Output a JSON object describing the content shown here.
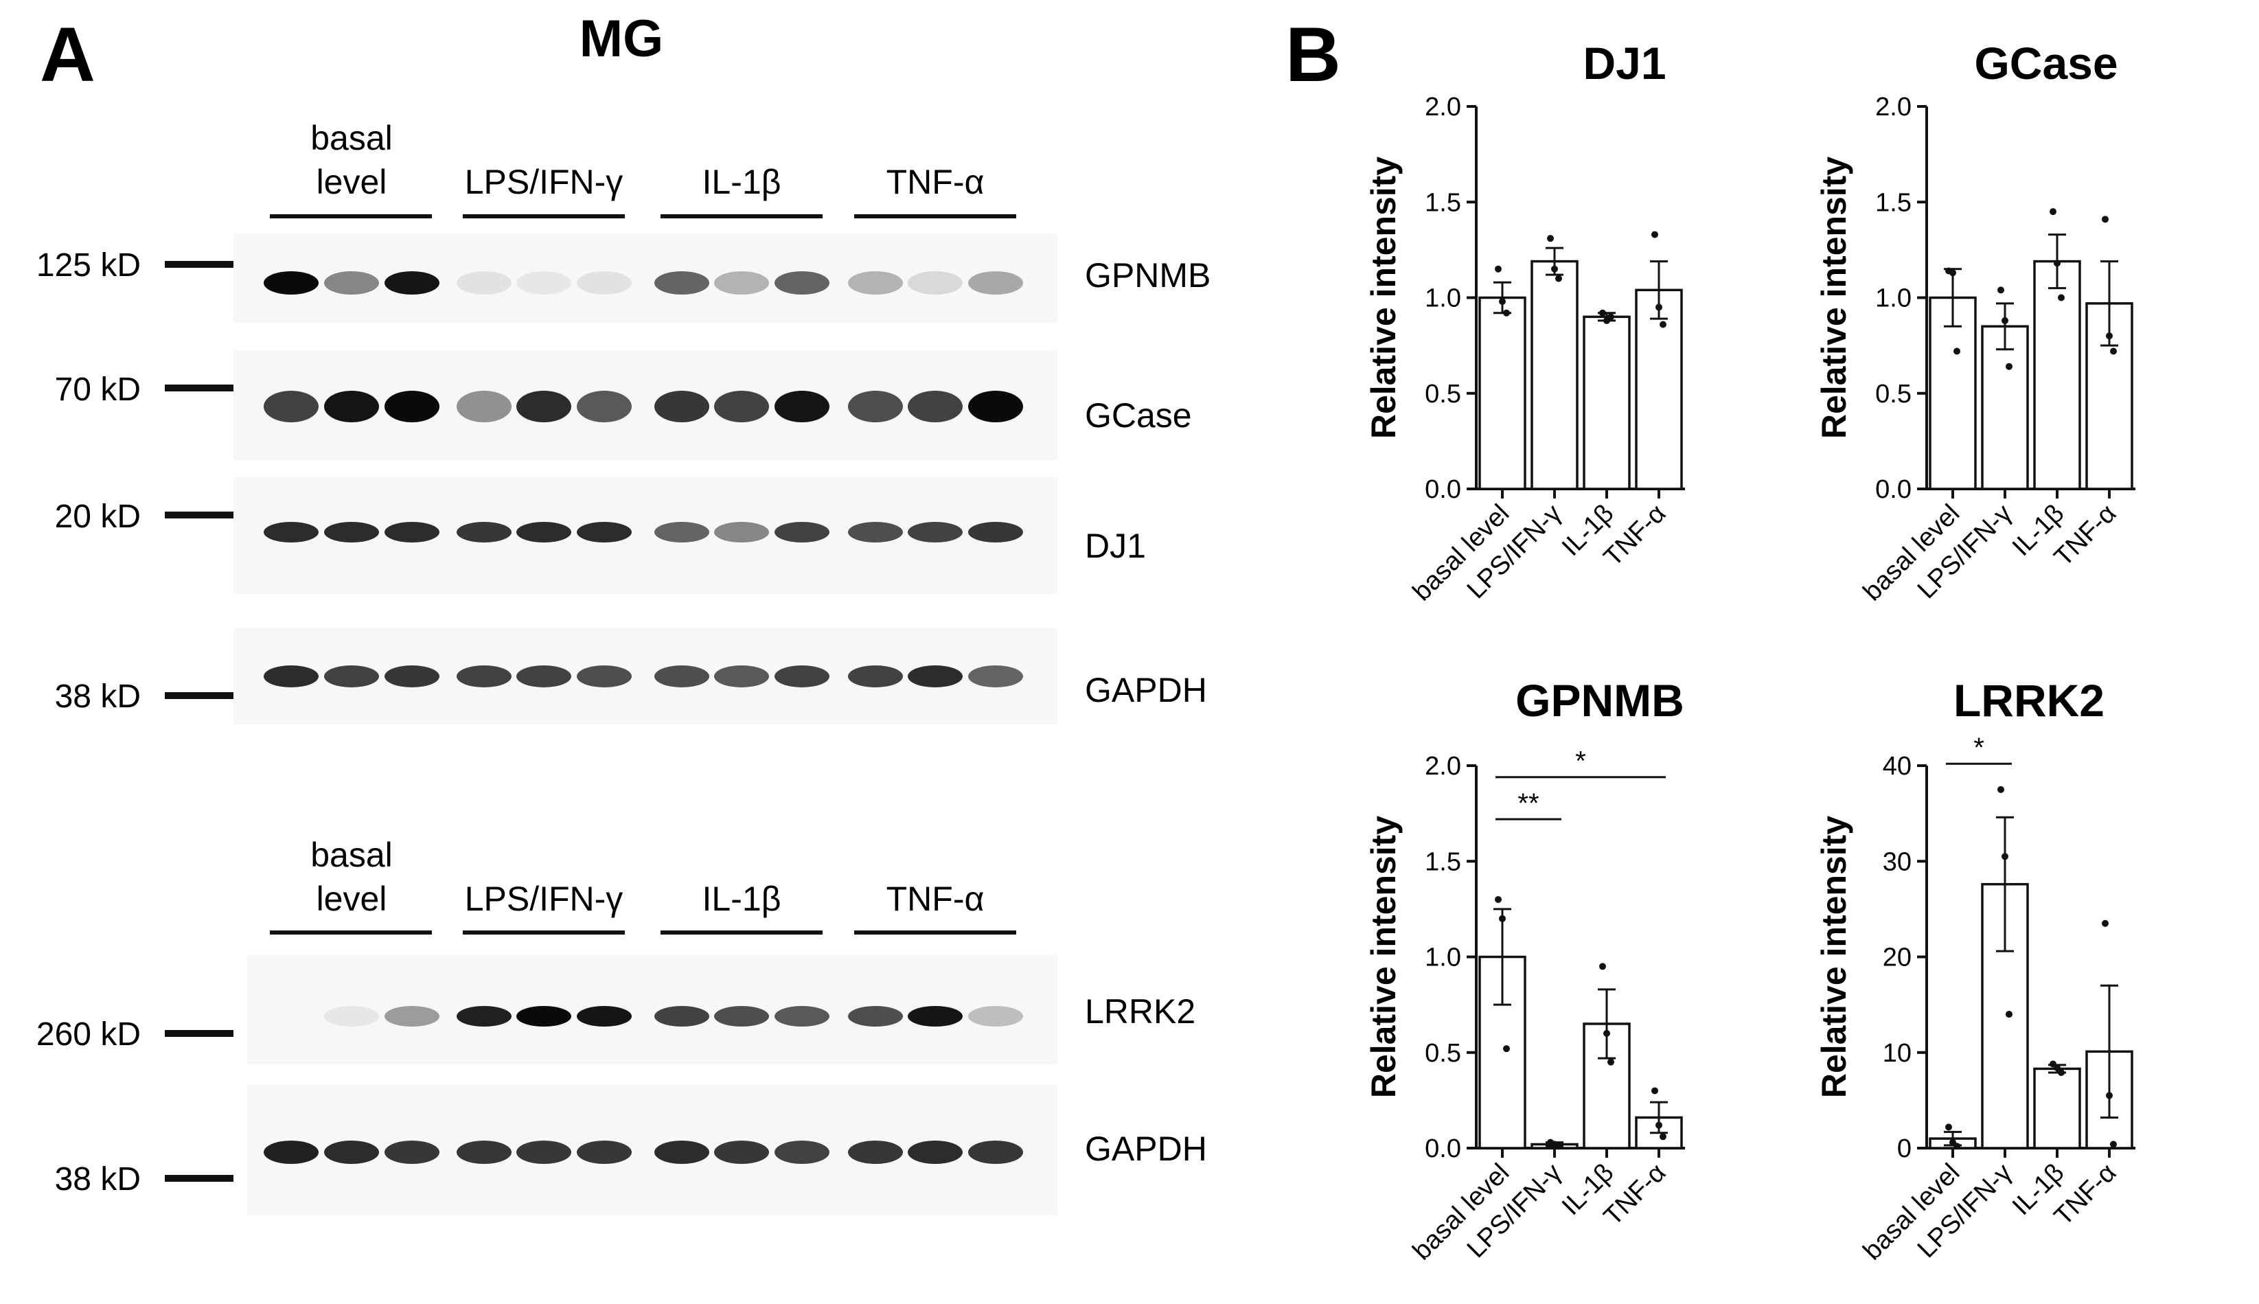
{
  "panel_a": {
    "label": "A",
    "title": "MG",
    "groups": [
      "basal level",
      "LPS/IFN-γ",
      "IL-1β",
      "TNF-α"
    ],
    "basal_label_line1": "basal",
    "basal_label_line2": "level",
    "blots": [
      {
        "protein": "GPNMB",
        "marker": "125 kD",
        "intensities": [
          1.0,
          0.45,
          0.95,
          0.04,
          0.02,
          0.04,
          0.6,
          0.25,
          0.6,
          0.25,
          0.08,
          0.3
        ]
      },
      {
        "protein": "GCase",
        "marker": "70 kD",
        "intensities": [
          0.75,
          0.95,
          1.0,
          0.4,
          0.85,
          0.65,
          0.8,
          0.75,
          0.95,
          0.7,
          0.75,
          1.0
        ]
      },
      {
        "protein": "DJ1",
        "marker": "20 kD",
        "intensities": [
          0.85,
          0.85,
          0.85,
          0.8,
          0.85,
          0.85,
          0.6,
          0.45,
          0.75,
          0.7,
          0.75,
          0.8
        ]
      },
      {
        "protein": "GAPDH",
        "marker": "38 kD",
        "intensities": [
          0.85,
          0.75,
          0.8,
          0.75,
          0.75,
          0.7,
          0.7,
          0.65,
          0.75,
          0.75,
          0.85,
          0.6
        ]
      },
      {
        "protein": "LRRK2",
        "marker": "260 kD",
        "intensities": [
          0.0,
          0.02,
          0.35,
          0.9,
          1.0,
          0.95,
          0.75,
          0.7,
          0.65,
          0.7,
          0.95,
          0.2
        ]
      },
      {
        "protein": "GAPDH",
        "marker": "38 kD",
        "intensities": [
          0.9,
          0.85,
          0.8,
          0.8,
          0.8,
          0.8,
          0.85,
          0.8,
          0.75,
          0.8,
          0.85,
          0.8
        ]
      }
    ]
  },
  "panel_b": {
    "label": "B"
  },
  "chart_data": [
    {
      "type": "bar",
      "title": "DJ1",
      "xlabel": "",
      "ylabel": "Relative intensity",
      "categories": [
        "basal level",
        "LPS/IFN-γ",
        "IL-1β",
        "TNF-α"
      ],
      "values": [
        1.0,
        1.19,
        0.9,
        1.04
      ],
      "sem": [
        0.08,
        0.07,
        0.02,
        0.15
      ],
      "points": [
        [
          1.15,
          0.98,
          0.92
        ],
        [
          1.31,
          1.15,
          1.1
        ],
        [
          0.92,
          0.88,
          0.9
        ],
        [
          1.33,
          0.95,
          0.86
        ]
      ],
      "ylim": [
        0,
        2.0
      ],
      "yticks": [
        "0.0",
        "0.5",
        "1.0",
        "1.5",
        "2.0"
      ],
      "significance": []
    },
    {
      "type": "bar",
      "title": "GCase",
      "xlabel": "",
      "ylabel": "Relative intensity",
      "categories": [
        "basal level",
        "LPS/IFN-γ",
        "IL-1β",
        "TNF-α"
      ],
      "values": [
        1.0,
        0.85,
        1.19,
        0.97
      ],
      "sem": [
        0.15,
        0.12,
        0.14,
        0.22
      ],
      "points": [
        [
          1.14,
          1.13,
          0.72
        ],
        [
          1.04,
          0.88,
          0.64
        ],
        [
          1.45,
          1.18,
          1.0
        ],
        [
          1.41,
          0.8,
          0.72
        ]
      ],
      "ylim": [
        0,
        2.0
      ],
      "yticks": [
        "0.0",
        "0.5",
        "1.0",
        "1.5",
        "2.0"
      ],
      "significance": []
    },
    {
      "type": "bar",
      "title": "GPNMB",
      "xlabel": "",
      "ylabel": "Relative intensity",
      "categories": [
        "basal level",
        "LPS/IFN-γ",
        "IL-1β",
        "TNF-α"
      ],
      "values": [
        1.0,
        0.02,
        0.65,
        0.16
      ],
      "sem": [
        0.25,
        0.01,
        0.18,
        0.08
      ],
      "points": [
        [
          1.3,
          1.2,
          0.52
        ],
        [
          0.03,
          0.02,
          0.01
        ],
        [
          0.95,
          0.6,
          0.45
        ],
        [
          0.3,
          0.12,
          0.06
        ]
      ],
      "ylim": [
        0,
        2.0
      ],
      "yticks": [
        "0.0",
        "0.5",
        "1.0",
        "1.5",
        "2.0"
      ],
      "significance": [
        {
          "from": 0,
          "to": 1,
          "y": 1.72,
          "label": "**"
        },
        {
          "from": 0,
          "to": 3,
          "y": 1.94,
          "label": "*"
        }
      ]
    },
    {
      "type": "bar",
      "title": "LRRK2",
      "xlabel": "",
      "ylabel": "Relative intensity",
      "categories": [
        "basal level",
        "LPS/IFN-γ",
        "IL-1β",
        "TNF-α"
      ],
      "values": [
        1.0,
        27.6,
        8.3,
        10.1
      ],
      "sem": [
        0.7,
        7.0,
        0.4,
        6.9
      ],
      "points": [
        [
          2.2,
          0.6,
          0.2
        ],
        [
          37.5,
          30.5,
          14.0
        ],
        [
          8.8,
          8.4,
          7.9
        ],
        [
          23.5,
          5.5,
          0.4
        ]
      ],
      "ylim": [
        0,
        40
      ],
      "yticks": [
        "0",
        "10",
        "20",
        "30",
        "40"
      ],
      "significance": [
        {
          "from": 0,
          "to": 1,
          "y": 40.2,
          "label": "*"
        }
      ]
    }
  ]
}
